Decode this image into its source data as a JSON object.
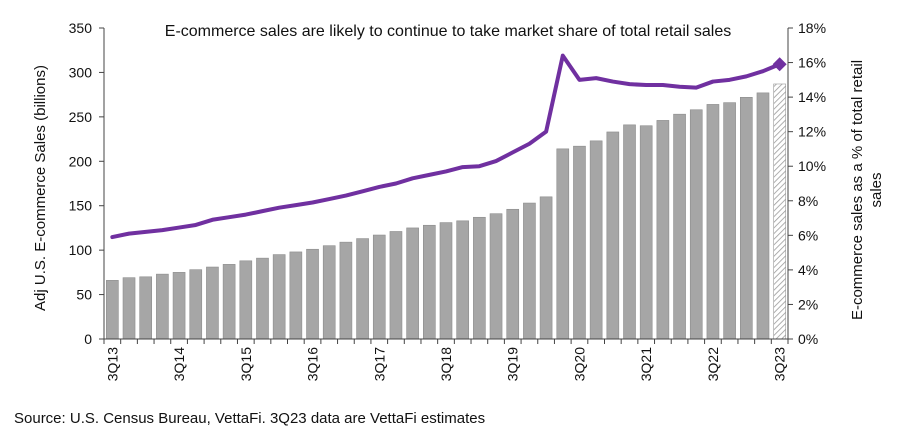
{
  "chart_data": {
    "type": "bar",
    "title": "E-commerce sales are likely to continue to take market share of total retail sales",
    "source": "Source: U.S. Census Bureau, VettaFi. 3Q23 data are VettaFi estimates",
    "ylabel_left": "Adj U.S. E-commerce Sales (billions)",
    "ylabel_right_line1": "E-commerce sales as a % of total retail",
    "ylabel_right_line2": "sales",
    "ylim_left": [
      0,
      350
    ],
    "ylim_right": [
      0,
      18
    ],
    "left_ticks": [
      0,
      50,
      100,
      150,
      200,
      250,
      300,
      350
    ],
    "right_ticks": [
      "0%",
      "2%",
      "4%",
      "6%",
      "8%",
      "10%",
      "12%",
      "14%",
      "16%",
      "18%"
    ],
    "categories": [
      "3Q13",
      "4Q13",
      "1Q14",
      "2Q14",
      "3Q14",
      "4Q14",
      "1Q15",
      "2Q15",
      "3Q15",
      "4Q15",
      "1Q16",
      "2Q16",
      "3Q16",
      "4Q16",
      "1Q17",
      "2Q17",
      "3Q17",
      "4Q17",
      "1Q18",
      "2Q18",
      "3Q18",
      "4Q18",
      "1Q19",
      "2Q19",
      "3Q19",
      "4Q19",
      "1Q20",
      "2Q20",
      "3Q20",
      "4Q20",
      "1Q21",
      "2Q21",
      "3Q21",
      "4Q21",
      "1Q22",
      "2Q22",
      "3Q22",
      "4Q22",
      "1Q23",
      "2Q23",
      "3Q23"
    ],
    "x_tick_labels": [
      {
        "index": 0,
        "label": "3Q13"
      },
      {
        "index": 4,
        "label": "3Q14"
      },
      {
        "index": 8,
        "label": "3Q15"
      },
      {
        "index": 12,
        "label": "3Q16"
      },
      {
        "index": 16,
        "label": "3Q17"
      },
      {
        "index": 20,
        "label": "3Q18"
      },
      {
        "index": 24,
        "label": "3Q19"
      },
      {
        "index": 28,
        "label": "3Q20"
      },
      {
        "index": 32,
        "label": "3Q21"
      },
      {
        "index": 36,
        "label": "3Q22"
      },
      {
        "index": 40,
        "label": "3Q23"
      }
    ],
    "series": [
      {
        "type": "bar",
        "axis": "left",
        "color": "#a6a6a6",
        "estimate_index": 40,
        "values": [
          66,
          69,
          70,
          73,
          75,
          78,
          81,
          84,
          88,
          91,
          95,
          98,
          101,
          105,
          109,
          113,
          117,
          121,
          125,
          128,
          131,
          133,
          137,
          141,
          146,
          153,
          160,
          214,
          217,
          223,
          233,
          241,
          240,
          246,
          253,
          258,
          264,
          266,
          272,
          277,
          287
        ]
      },
      {
        "type": "line",
        "axis": "right",
        "color": "#7030a0",
        "values": [
          5.9,
          6.1,
          6.2,
          6.3,
          6.45,
          6.6,
          6.9,
          7.05,
          7.2,
          7.4,
          7.6,
          7.75,
          7.9,
          8.1,
          8.3,
          8.55,
          8.8,
          9.0,
          9.3,
          9.5,
          9.7,
          9.95,
          10.0,
          10.3,
          10.8,
          11.3,
          12.0,
          16.4,
          15.0,
          15.1,
          14.9,
          14.75,
          14.7,
          14.7,
          14.6,
          14.55,
          14.9,
          15.0,
          15.2,
          15.5,
          15.9
        ]
      }
    ]
  }
}
